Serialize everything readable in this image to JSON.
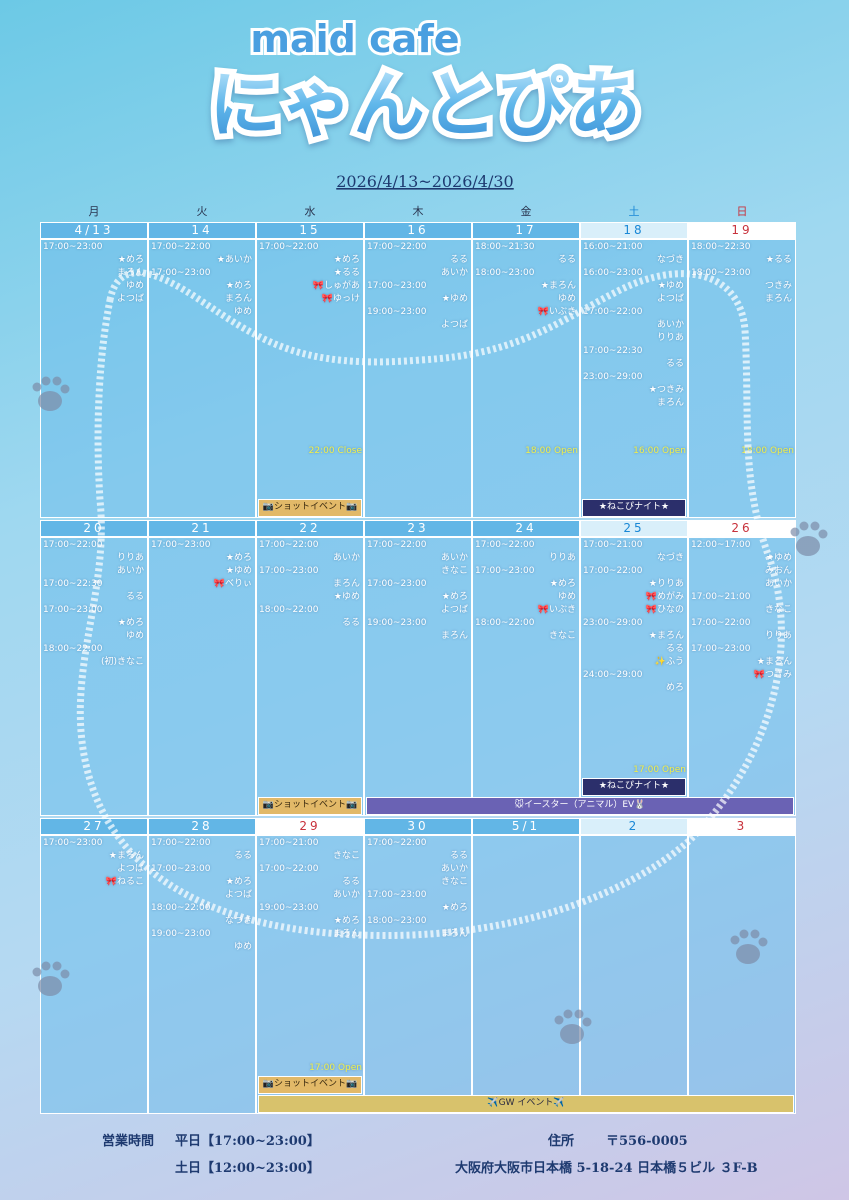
{
  "header": {
    "subtitle": "maid cafe",
    "title": "にゃんとぴあ",
    "period": "2026/4/13~2026/4/30"
  },
  "weekdays": [
    "月",
    "火",
    "水",
    "木",
    "金",
    "土",
    "日"
  ],
  "weeks": [
    {
      "days": [
        {
          "date": "4/13",
          "rows": [
            {
              "time": "17:00~23:00"
            },
            {
              "name": "★めろ"
            },
            {
              "name": "まろん"
            },
            {
              "name": "ゆめ"
            },
            {
              "name": "よつば"
            }
          ]
        },
        {
          "date": "14",
          "rows": [
            {
              "time": "17:00~22:00"
            },
            {
              "name": "★あいか"
            },
            {
              "time": "17:00~23:00"
            },
            {
              "name": "★めろ"
            },
            {
              "name": "まろん"
            },
            {
              "name": "ゆめ"
            }
          ]
        },
        {
          "date": "15",
          "rows": [
            {
              "time": "17:00~22:00"
            },
            {
              "name": "★めろ"
            },
            {
              "name": "★るる"
            },
            {
              "name": "🎀しゅがあ"
            },
            {
              "name": "🎀ゆっけ"
            }
          ],
          "note": "22:00 Close"
        },
        {
          "date": "16",
          "rows": [
            {
              "time": "17:00~22:00"
            },
            {
              "name": "るる"
            },
            {
              "name": "あいか"
            },
            {
              "time": "17:00~23:00"
            },
            {
              "name": "★ゆめ"
            },
            {
              "time": "19:00~23:00"
            },
            {
              "name": "よつば"
            }
          ]
        },
        {
          "date": "17",
          "rows": [
            {
              "time": "18:00~21:30"
            },
            {
              "name": "るる"
            },
            {
              "time": "18:00~23:00"
            },
            {
              "name": "★まろん"
            },
            {
              "name": "ゆめ"
            },
            {
              "name": "🎀いぶき"
            }
          ],
          "note": "18:00 Open"
        },
        {
          "date": "18",
          "rows": [
            {
              "time": "16:00~21:00"
            },
            {
              "name": "なづき"
            },
            {
              "time": "16:00~23:00"
            },
            {
              "name": "★ゆめ"
            },
            {
              "name": "よつば"
            },
            {
              "time": "17:00~22:00"
            },
            {
              "name": "あいか"
            },
            {
              "name": "りりあ"
            },
            {
              "time": "17:00~22:30"
            },
            {
              "name": "るる"
            },
            {
              "time": "23:00~29:00"
            },
            {
              "name": "★つきみ"
            },
            {
              "name": "まろん"
            }
          ],
          "note": "16:00 Open"
        },
        {
          "date": "19",
          "rows": [
            {
              "time": "18:00~22:30"
            },
            {
              "name": "★るる"
            },
            {
              "time": "18:00~23:00"
            },
            {
              "name": "つきみ"
            },
            {
              "name": "まろん"
            }
          ],
          "note": "18:00 Open"
        }
      ],
      "events": [
        {
          "label": "📷ショットイベント📷",
          "from": 2,
          "to": 2,
          "color": "#e2b968",
          "text_color": "#3a2a10"
        },
        {
          "label": "★ねこぴナイト★",
          "from": 5,
          "to": 5,
          "color": "#2b2f6b",
          "text_color": "#ffffff"
        }
      ]
    },
    {
      "days": [
        {
          "date": "20",
          "rows": [
            {
              "time": "17:00~22:00"
            },
            {
              "name": "りりあ"
            },
            {
              "name": "あいか"
            },
            {
              "time": "17:00~22:30"
            },
            {
              "name": "るる"
            },
            {
              "time": "17:00~23:00"
            },
            {
              "name": "★めろ"
            },
            {
              "name": "ゆめ"
            },
            {
              "time": "18:00~22:00"
            },
            {
              "name": "(初)きなこ"
            }
          ]
        },
        {
          "date": "21",
          "rows": [
            {
              "time": "17:00~23:00"
            },
            {
              "name": "★めろ"
            },
            {
              "name": "★ゆめ"
            },
            {
              "name": "🎀べりぃ"
            }
          ]
        },
        {
          "date": "22",
          "rows": [
            {
              "time": "17:00~22:00"
            },
            {
              "name": "あいか"
            },
            {
              "time": "17:00~23:00"
            },
            {
              "name": "まろん"
            },
            {
              "name": "★ゆめ"
            },
            {
              "time": "18:00~22:00"
            },
            {
              "name": "るる"
            }
          ]
        },
        {
          "date": "23",
          "rows": [
            {
              "time": "17:00~22:00"
            },
            {
              "name": "あいか"
            },
            {
              "name": "きなこ"
            },
            {
              "time": "17:00~23:00"
            },
            {
              "name": "★めろ"
            },
            {
              "name": "よつば"
            },
            {
              "time": "19:00~23:00"
            },
            {
              "name": "まろん"
            }
          ]
        },
        {
          "date": "24",
          "rows": [
            {
              "time": "17:00~22:00"
            },
            {
              "name": "りりあ"
            },
            {
              "time": "17:00~23:00"
            },
            {
              "name": "★めろ"
            },
            {
              "name": "ゆめ"
            },
            {
              "name": "🎀いぶき"
            },
            {
              "time": "18:00~22:00"
            },
            {
              "name": "きなこ"
            }
          ]
        },
        {
          "date": "25",
          "rows": [
            {
              "time": "17:00~21:00"
            },
            {
              "name": "なづき"
            },
            {
              "time": "17:00~22:00"
            },
            {
              "name": "★りりあ"
            },
            {
              "name": "🎀めがみ"
            },
            {
              "name": "🎀ひなの"
            },
            {
              "time": "23:00~29:00"
            },
            {
              "name": "★まろん"
            },
            {
              "name": "るる"
            },
            {
              "name": "✨ふう"
            },
            {
              "time": "24:00~29:00"
            },
            {
              "name": "めろ"
            }
          ],
          "note": "17:00 Open"
        },
        {
          "date": "26",
          "rows": [
            {
              "time": "12:00~17:00"
            },
            {
              "name": "★ゆめ"
            },
            {
              "name": "みおん"
            },
            {
              "name": "あいか"
            },
            {
              "time": "17:00~21:00"
            },
            {
              "name": "きなこ"
            },
            {
              "time": "17:00~22:00"
            },
            {
              "name": "りりあ"
            },
            {
              "time": "17:00~23:00"
            },
            {
              "name": "★まろん"
            },
            {
              "name": "🎀つきみ"
            }
          ]
        }
      ],
      "events": [
        {
          "label": "★ねこぴナイト★",
          "from": 5,
          "to": 5,
          "color": "#2b2f6b",
          "text_color": "#ffffff"
        },
        {
          "label": "📷ショットイベント📷",
          "from": 2,
          "to": 2,
          "color": "#e2b968",
          "text_color": "#3a2a10"
        },
        {
          "label": "🐭イースター（アニマル）EV🐰",
          "from": 3,
          "to": 6,
          "color": "#6a62b4",
          "text_color": "#ffffff"
        }
      ]
    },
    {
      "days": [
        {
          "date": "27",
          "rows": [
            {
              "time": "17:00~23:00"
            },
            {
              "name": "★まろん"
            },
            {
              "name": "よつば"
            },
            {
              "name": "🎀ねるこ"
            }
          ]
        },
        {
          "date": "28",
          "rows": [
            {
              "time": "17:00~22:00"
            },
            {
              "name": "るる"
            },
            {
              "time": "17:00~23:00"
            },
            {
              "name": "★めろ"
            },
            {
              "name": "よつば"
            },
            {
              "time": "18:00~22:00"
            },
            {
              "name": "なづき"
            },
            {
              "time": "19:00~23:00"
            },
            {
              "name": "ゆめ"
            }
          ]
        },
        {
          "date": "29",
          "color": "#c8323c",
          "rows": [
            {
              "time": "17:00~21:00"
            },
            {
              "name": "きなこ"
            },
            {
              "time": "17:00~22:00"
            },
            {
              "name": "るる"
            },
            {
              "name": "あいか"
            },
            {
              "time": "19:00~23:00"
            },
            {
              "name": "★めろ"
            },
            {
              "name": "まろん"
            }
          ],
          "note": "17:00 Open"
        },
        {
          "date": "30",
          "rows": [
            {
              "time": "17:00~22:00"
            },
            {
              "name": "るる"
            },
            {
              "name": "あいか"
            },
            {
              "name": "きなこ"
            },
            {
              "time": "17:00~23:00"
            },
            {
              "name": "★めろ"
            },
            {
              "time": "18:00~23:00"
            },
            {
              "name": "まろん"
            }
          ]
        },
        {
          "date": "5/1",
          "rows": []
        },
        {
          "date": "2",
          "rows": []
        },
        {
          "date": "3",
          "rows": []
        }
      ],
      "events": [
        {
          "label": "📷ショットイベント📷",
          "from": 2,
          "to": 2,
          "color": "#e2b968",
          "text_color": "#3a2a10"
        },
        {
          "label": "✈️GW イベント✈️",
          "from": 2,
          "to": 6,
          "color": "#d8c26c",
          "text_color": "#2a2a40"
        }
      ]
    }
  ],
  "footer": {
    "hours_label": "営業時間",
    "weekday_hours": "平日【17:00~23:00】",
    "weekend_hours": "土日【12:00~23:00】",
    "address_label": "住所",
    "postal": "〒556-0005",
    "address": "大阪府大阪市日本橋 5-18-24 日本橋５ビル ３F-B"
  }
}
